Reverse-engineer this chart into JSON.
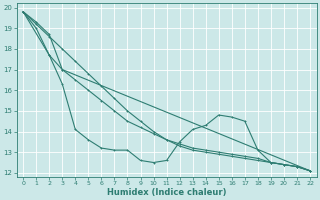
{
  "xlabel": "Humidex (Indice chaleur)",
  "bg_color": "#cce8e8",
  "line_color": "#2e7d72",
  "grid_color": "#b8d8d8",
  "xlim": [
    -0.5,
    22.5
  ],
  "ylim": [
    11.8,
    20.2
  ],
  "xticks": [
    0,
    1,
    2,
    3,
    4,
    5,
    6,
    7,
    8,
    9,
    10,
    11,
    12,
    13,
    14,
    15,
    16,
    17,
    18,
    19,
    20,
    21,
    22
  ],
  "yticks": [
    12,
    13,
    14,
    15,
    16,
    17,
    18,
    19,
    20
  ],
  "line1_x": [
    0,
    1,
    2,
    3,
    4,
    5,
    6,
    7,
    8,
    9,
    10,
    11,
    12,
    13,
    14,
    15,
    16,
    17,
    18,
    19,
    20,
    21,
    22
  ],
  "line1_y": [
    19.8,
    19.0,
    17.7,
    16.3,
    14.1,
    13.6,
    13.2,
    13.1,
    13.1,
    12.6,
    12.5,
    12.6,
    13.5,
    14.1,
    14.3,
    14.8,
    14.7,
    14.5,
    13.1,
    12.5,
    12.4,
    12.3,
    12.1
  ],
  "line2_x": [
    0,
    1,
    2,
    3,
    4,
    5,
    6,
    7,
    8,
    9,
    10,
    11,
    12,
    13,
    14,
    15,
    16,
    17,
    18,
    19,
    20,
    21,
    22
  ],
  "line2_y": [
    19.8,
    19.2,
    18.6,
    18.0,
    17.4,
    16.8,
    16.2,
    15.6,
    15.0,
    14.5,
    14.0,
    13.6,
    13.3,
    13.1,
    13.0,
    12.9,
    12.8,
    12.7,
    12.6,
    12.5,
    12.4,
    12.3,
    12.1
  ],
  "line3_x": [
    0,
    1,
    2,
    3,
    4,
    5,
    6,
    7,
    8,
    9,
    10,
    11,
    12,
    13,
    14,
    15,
    16,
    17,
    18,
    19,
    20,
    21,
    22
  ],
  "line3_y": [
    19.8,
    19.3,
    18.7,
    17.0,
    16.5,
    16.0,
    15.5,
    15.0,
    14.5,
    14.2,
    13.9,
    13.6,
    13.4,
    13.2,
    13.1,
    13.0,
    12.9,
    12.8,
    12.7,
    12.5,
    12.4,
    12.3,
    12.1
  ],
  "line4_x": [
    0,
    2,
    3,
    22
  ],
  "line4_y": [
    19.8,
    17.7,
    17.0,
    12.1
  ]
}
